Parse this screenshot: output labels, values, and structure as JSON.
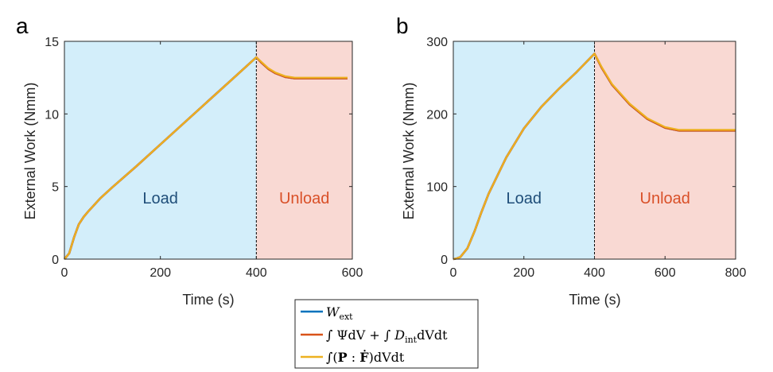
{
  "chart_data": [
    {
      "type": "line",
      "panel": "a",
      "xlabel": "Time (s)",
      "ylabel": "External Work (Nmm)",
      "xlim": [
        0,
        600
      ],
      "ylim": [
        0,
        15
      ],
      "xticks": [
        0,
        200,
        400,
        600
      ],
      "yticks": [
        0,
        5,
        10,
        15
      ],
      "regions": [
        {
          "label": "Load",
          "x_start": 0,
          "x_end": 400,
          "fill": "#d3eefa",
          "label_color": "#1f4e79"
        },
        {
          "label": "Unload",
          "x_start": 400,
          "x_end": 600,
          "fill": "#f9d9d3",
          "label_color": "#d95028"
        }
      ],
      "vline_x": 400,
      "x": [
        0,
        10,
        20,
        30,
        40,
        50,
        75,
        100,
        150,
        200,
        250,
        300,
        350,
        400,
        410,
        425,
        440,
        460,
        480,
        500,
        550,
        590
      ],
      "series": [
        {
          "name": "W_ext",
          "color": "#0072bd",
          "values": [
            0,
            0.4,
            1.5,
            2.4,
            2.9,
            3.3,
            4.2,
            4.95,
            6.4,
            7.9,
            9.4,
            10.9,
            12.4,
            13.9,
            13.55,
            13.1,
            12.8,
            12.55,
            12.45,
            12.45,
            12.45,
            12.45
          ]
        },
        {
          "name": "int Psi dV + int D_int dVdt",
          "color": "#d95319",
          "values": [
            0,
            0.4,
            1.5,
            2.4,
            2.9,
            3.3,
            4.2,
            4.95,
            6.4,
            7.9,
            9.4,
            10.9,
            12.4,
            13.9,
            13.55,
            13.1,
            12.8,
            12.55,
            12.45,
            12.45,
            12.45,
            12.45
          ]
        },
        {
          "name": "int (P : F_dot) dVdt",
          "color": "#edb120",
          "values": [
            0,
            0.4,
            1.5,
            2.4,
            2.9,
            3.3,
            4.2,
            4.95,
            6.4,
            7.9,
            9.4,
            10.9,
            12.4,
            13.9,
            13.6,
            13.15,
            12.85,
            12.6,
            12.5,
            12.5,
            12.5,
            12.5
          ]
        }
      ]
    },
    {
      "type": "line",
      "panel": "b",
      "xlabel": "Time (s)",
      "ylabel": "External Work (Nmm)",
      "xlim": [
        0,
        800
      ],
      "ylim": [
        0,
        300
      ],
      "xticks": [
        0,
        200,
        400,
        600,
        800
      ],
      "yticks": [
        0,
        100,
        200,
        300
      ],
      "regions": [
        {
          "label": "Load",
          "x_start": 0,
          "x_end": 400,
          "fill": "#d3eefa",
          "label_color": "#1f4e79"
        },
        {
          "label": "Unload",
          "x_start": 400,
          "x_end": 800,
          "fill": "#f9d9d3",
          "label_color": "#d95028"
        }
      ],
      "vline_x": 400,
      "x": [
        0,
        10,
        20,
        40,
        60,
        80,
        100,
        150,
        200,
        250,
        300,
        350,
        400,
        420,
        450,
        500,
        550,
        600,
        640,
        700,
        800
      ],
      "series": [
        {
          "name": "W_ext",
          "color": "#0072bd",
          "values": [
            0,
            1,
            3,
            15,
            38,
            65,
            90,
            140,
            180,
            210,
            235,
            258,
            283,
            264,
            240,
            213,
            193,
            181,
            177,
            177,
            177
          ]
        },
        {
          "name": "int Psi dV + int D_int dVdt",
          "color": "#d95319",
          "values": [
            0,
            1,
            3,
            15,
            38,
            65,
            90,
            140,
            180,
            210,
            235,
            258,
            283,
            264,
            240,
            213,
            193,
            181,
            177,
            177,
            177
          ]
        },
        {
          "name": "int (P : F_dot) dVdt",
          "color": "#edb120",
          "values": [
            0,
            1,
            3,
            15,
            38,
            65,
            90,
            140,
            180,
            210,
            235,
            258,
            283,
            265,
            241,
            214,
            194,
            182,
            178,
            178,
            178
          ]
        }
      ]
    }
  ],
  "legend": {
    "position": "bottom-center",
    "entries": [
      {
        "color": "#0072bd",
        "text": "Wext"
      },
      {
        "color": "#d95319",
        "text": "∫ ΨdV + ∫ DintdVdt"
      },
      {
        "color": "#edb120",
        "text": "∫(P : Ḟ)dVdt"
      }
    ]
  }
}
